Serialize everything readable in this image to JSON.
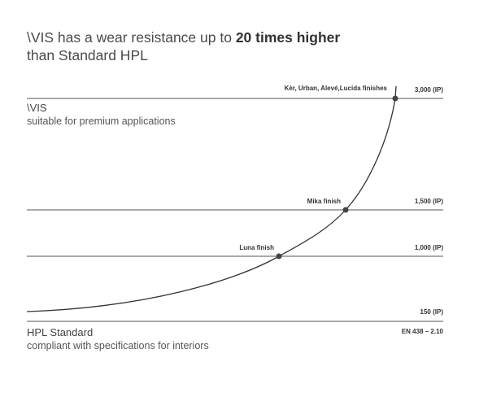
{
  "title": {
    "line1_prefix": "\\VIS has a wear resistance up to ",
    "line1_bold": "20 times higher",
    "line2": "than Standard HPL"
  },
  "top_block": {
    "name": "\\VIS",
    "desc": "suitable for premium applications"
  },
  "bottom_block": {
    "name": "HPL Standard",
    "desc": "compliant with specifications for interiors"
  },
  "chart_data": {
    "type": "line",
    "title": "",
    "xlabel": "",
    "ylabel": "",
    "standard_label": "EN 438 – 2.10",
    "levels": [
      {
        "value": 3000,
        "label": "3,000 (IP)"
      },
      {
        "value": 1500,
        "label": "1,500 (IP)"
      },
      {
        "value": 1000,
        "label": "1,000 (IP)"
      },
      {
        "value": 150,
        "label": "150 (IP)"
      }
    ],
    "points": [
      {
        "value": 3000,
        "label": "Kèr, Urban, Alevé,Lucida finishes"
      },
      {
        "value": 1500,
        "label": "Mika finish"
      },
      {
        "value": 1000,
        "label": "Luna finish"
      }
    ],
    "colors": {
      "line": "#333333",
      "marker": "#444444"
    }
  }
}
